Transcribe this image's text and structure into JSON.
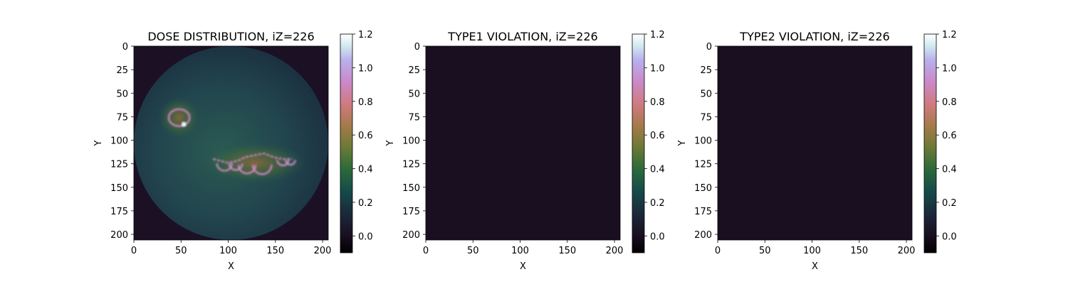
{
  "chart_data": [
    {
      "type": "heatmap",
      "title": "DOSE DISTRIBUTION, iZ=226",
      "xlabel": "X",
      "ylabel": "Y",
      "xlim": [
        0,
        206
      ],
      "ylim": [
        206,
        0
      ],
      "x_ticks": [
        0,
        50,
        100,
        150,
        200
      ],
      "y_ticks": [
        0,
        25,
        50,
        75,
        100,
        125,
        150,
        175,
        200
      ],
      "colorbar": {
        "range": [
          -0.1,
          1.2
        ],
        "ticks": [
          -0.0,
          0.2,
          0.4,
          0.6,
          0.8,
          1.0,
          1.2
        ],
        "colormap": "cubehelix"
      },
      "background_value": -0.05,
      "field": {
        "shape": "disc",
        "center": [
          103,
          103
        ],
        "radius": 103,
        "base_value": 0.15,
        "peak_value": 0.25
      },
      "structures": [
        {
          "name": "ring",
          "center": [
            48,
            76
          ],
          "radii": [
            11,
            9
          ],
          "value": 0.85,
          "hot_spot": [
            53,
            83
          ]
        },
        {
          "name": "chain",
          "path": [
            [
              84,
              120
            ],
            [
              92,
              122
            ],
            [
              100,
              124
            ],
            [
              110,
              122
            ],
            [
              118,
              118
            ],
            [
              128,
              116
            ],
            [
              138,
              114
            ],
            [
              148,
              118
            ],
            [
              158,
              120
            ],
            [
              168,
              120
            ]
          ],
          "value": 0.85
        },
        {
          "name": "arcs",
          "circles": [
            [
              96,
              126,
              8
            ],
            [
              108,
              126,
              7
            ],
            [
              120,
              128,
              9
            ],
            [
              136,
              128,
              10
            ],
            [
              158,
              122,
              6
            ],
            [
              166,
              122,
              5
            ]
          ],
          "value": 0.85
        }
      ]
    },
    {
      "type": "heatmap",
      "title": "TYPE1 VIOLATION, iZ=226",
      "xlabel": "X",
      "ylabel": "Y",
      "xlim": [
        0,
        206
      ],
      "ylim": [
        206,
        0
      ],
      "x_ticks": [
        0,
        50,
        100,
        150,
        200
      ],
      "y_ticks": [
        0,
        25,
        50,
        75,
        100,
        125,
        150,
        175,
        200
      ],
      "colorbar": {
        "range": [
          -0.1,
          1.2
        ],
        "ticks": [
          -0.0,
          0.2,
          0.4,
          0.6,
          0.8,
          1.0,
          1.2
        ],
        "colormap": "cubehelix"
      },
      "background_value": 0.0
    },
    {
      "type": "heatmap",
      "title": "TYPE2 VIOLATION, iZ=226",
      "xlabel": "X",
      "ylabel": "Y",
      "xlim": [
        0,
        206
      ],
      "ylim": [
        206,
        0
      ],
      "x_ticks": [
        0,
        50,
        100,
        150,
        200
      ],
      "y_ticks": [
        0,
        25,
        50,
        75,
        100,
        125,
        150,
        175,
        200
      ],
      "colorbar": {
        "range": [
          -0.1,
          1.2
        ],
        "ticks": [
          -0.0,
          0.2,
          0.4,
          0.6,
          0.8,
          1.0,
          1.2
        ],
        "colormap": "cubehelix"
      },
      "background_value": 0.0
    }
  ],
  "colors": {
    "empty_panel": "#1a0f21",
    "outside_disc": "#1c1024",
    "disc_fill": "#1e3a48",
    "disc_center": "#2a5a55",
    "hot_glow": "#7a6a2a",
    "contour": "#d88cd2",
    "hot_spot": "#e8f4ff"
  }
}
